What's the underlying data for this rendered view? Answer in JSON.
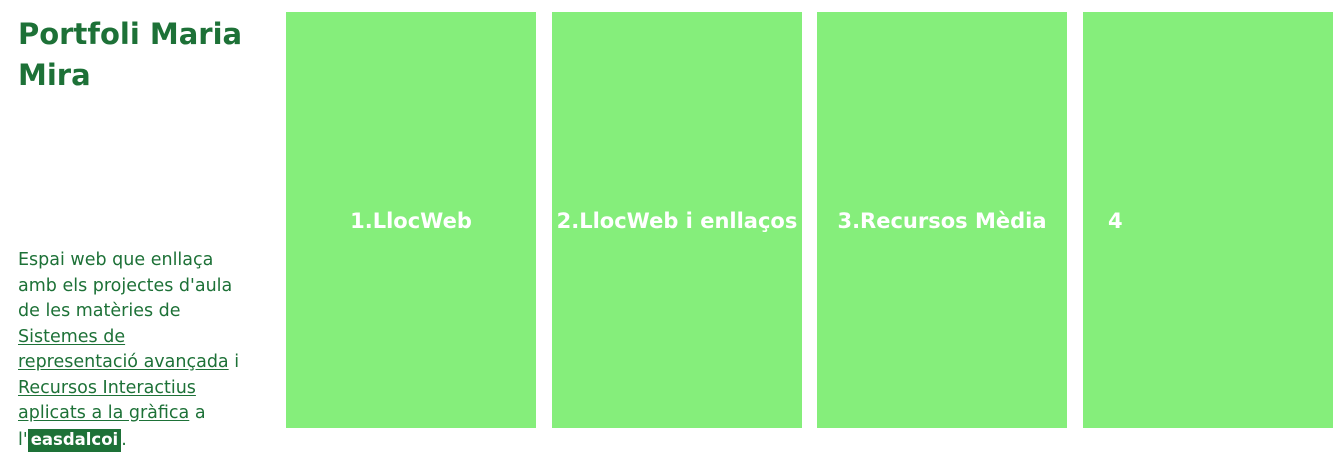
{
  "sidebar": {
    "title": "Portfoli Maria Mira",
    "intro": {
      "text_before": "Espai web que enllaça amb els projectes d'aula de les matèries de ",
      "link1": "Sistemes de representació avançada",
      "text_middle": " i ",
      "link2": "Recursos Interactius aplicats a la gràfica",
      "text_after": " a l'",
      "badge": "easdalcoi",
      "end": "."
    }
  },
  "cards": [
    {
      "label": "1.LlocWeb"
    },
    {
      "label": "2.LlocWeb i enllaços"
    },
    {
      "label": "3.Recursos Mèdia"
    },
    {
      "label": "4"
    }
  ],
  "colors": {
    "primary_green": "#1d7137",
    "card_green": "#85ee7b",
    "card_text": "#ffffff"
  }
}
